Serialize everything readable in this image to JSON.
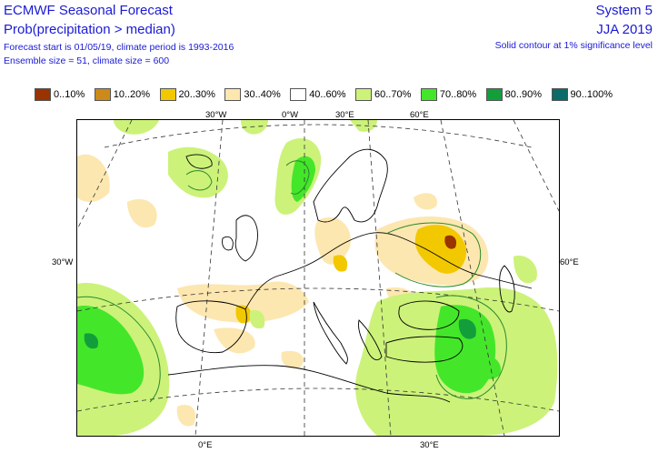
{
  "header": {
    "title": "ECMWF Seasonal Forecast",
    "subtitle": "Prob(precipitation > median)",
    "forecast_info": "Forecast start is 01/05/19, climate period is 1993-2016",
    "ensemble_info": "Ensemble size = 51, climate size = 600",
    "system": "System 5",
    "season": "JJA 2019",
    "significance_note": "Solid contour at 1% significance level"
  },
  "legend": [
    {
      "label": "0..10%",
      "color": "#993300"
    },
    {
      "label": "10..20%",
      "color": "#cc8a1a"
    },
    {
      "label": "20..30%",
      "color": "#f2c800"
    },
    {
      "label": "30..40%",
      "color": "#fde7b0"
    },
    {
      "label": "40..60%",
      "color": "#ffffff"
    },
    {
      "label": "60..70%",
      "color": "#ccf27a"
    },
    {
      "label": "70..80%",
      "color": "#44e62a"
    },
    {
      "label": "80..90%",
      "color": "#139e3c"
    },
    {
      "label": "90..100%",
      "color": "#0b6b68"
    }
  ],
  "geo_labels": {
    "top": [
      "30°W",
      "0°W",
      "30°E",
      "60°E"
    ],
    "left": "30°W",
    "right": "60°E",
    "bottom": [
      "0°E",
      "30°E"
    ]
  }
}
